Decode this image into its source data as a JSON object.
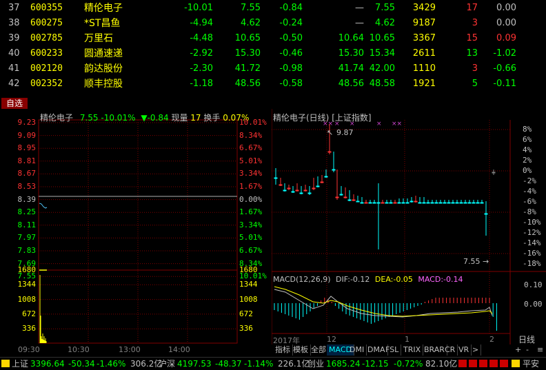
{
  "stocks": [
    {
      "idx": "37",
      "code": "600355",
      "name": "精伦电子",
      "chg": "-10.01",
      "price": "7.55",
      "delta": "-0.84",
      "open": "—",
      "last": "7.55",
      "vol": "3429",
      "hand": "17",
      "rate": "0.00",
      "hand_color": "r",
      "rate_color": "w",
      "open_color": "w"
    },
    {
      "idx": "38",
      "code": "600275",
      "name": "*ST昌鱼",
      "chg": "-4.94",
      "price": "4.62",
      "delta": "-0.24",
      "open": "—",
      "last": "4.62",
      "vol": "9187",
      "hand": "3",
      "rate": "0.00",
      "hand_color": "r",
      "rate_color": "w",
      "open_color": "w"
    },
    {
      "idx": "39",
      "code": "002785",
      "name": "万里石",
      "chg": "-4.48",
      "price": "10.65",
      "delta": "-0.50",
      "open": "10.64",
      "last": "10.65",
      "vol": "3367",
      "hand": "15",
      "rate": "0.09",
      "hand_color": "r",
      "rate_color": "r",
      "open_color": "g"
    },
    {
      "idx": "40",
      "code": "600233",
      "name": "圆通速递",
      "chg": "-2.92",
      "price": "15.30",
      "delta": "-0.46",
      "open": "15.30",
      "last": "15.34",
      "vol": "2611",
      "hand": "13",
      "rate": "-1.02",
      "hand_color": "g",
      "rate_color": "g",
      "open_color": "g"
    },
    {
      "idx": "41",
      "code": "002120",
      "name": "韵达股份",
      "chg": "-2.30",
      "price": "41.72",
      "delta": "-0.98",
      "open": "41.74",
      "last": "42.00",
      "vol": "1110",
      "hand": "3",
      "rate": "-0.66",
      "hand_color": "r",
      "rate_color": "g",
      "open_color": "g"
    },
    {
      "idx": "42",
      "code": "002352",
      "name": "顺丰控股",
      "chg": "-1.18",
      "price": "48.56",
      "delta": "-0.58",
      "open": "48.56",
      "last": "48.58",
      "vol": "1921",
      "hand": "5",
      "rate": "-0.11",
      "hand_color": "g",
      "rate_color": "g",
      "open_color": "g"
    }
  ],
  "tag_self": "自选",
  "intraday": {
    "name": "精伦电子",
    "price": "7.55",
    "pct": "-10.01%",
    "arrow": "▼",
    "delta": "-0.84",
    "vol_label": "现量",
    "vol": "17",
    "turn_label": "换手",
    "turn": "0.07%",
    "price_ticks": [
      {
        "v": "9.23",
        "p": "10.01%",
        "c": "r"
      },
      {
        "v": "9.09",
        "p": "8.34%",
        "c": "r"
      },
      {
        "v": "8.95",
        "p": "6.67%",
        "c": "r"
      },
      {
        "v": "8.81",
        "p": "5.01%",
        "c": "r"
      },
      {
        "v": "8.67",
        "p": "3.34%",
        "c": "r"
      },
      {
        "v": "8.53",
        "p": "1.67%",
        "c": "r"
      },
      {
        "v": "8.39",
        "p": "0.00%",
        "c": "w"
      },
      {
        "v": "8.25",
        "p": "1.67%",
        "c": "g"
      },
      {
        "v": "8.11",
        "p": "3.34%",
        "c": "g"
      },
      {
        "v": "7.97",
        "p": "5.01%",
        "c": "g"
      },
      {
        "v": "7.83",
        "p": "6.67%",
        "c": "g"
      },
      {
        "v": "7.69",
        "p": "8.34%",
        "c": "g"
      },
      {
        "v": "7.55",
        "p": "10.01%",
        "c": "g"
      }
    ],
    "vol_ticks": [
      "1680",
      "1344",
      "1008",
      "672",
      "336"
    ],
    "times": [
      "09:30",
      "10:30",
      "13:00",
      "14:00"
    ]
  },
  "kline": {
    "title": "精伦电子(日线)",
    "index_tag": "[上证指数]",
    "high_label": "9.87",
    "low_label": "7.55",
    "pct_ticks": [
      "8%",
      "6%",
      "4%",
      "2%",
      "0%",
      "-2%",
      "-4%",
      "-6%",
      "-8%",
      "-10%",
      "-12%",
      "-14%",
      "-16%",
      "-18%"
    ],
    "macd_label": "MACD(12,26,9)",
    "dif_label": "DIF:",
    "dif": "-0.12",
    "dea_label": "DEA:",
    "dea": "-0.05",
    "macd_val_label": "MACD:",
    "macd_val": "-0.14",
    "macd_ticks": [
      "0.10",
      "0.00"
    ],
    "year": "2017年",
    "m12": "12",
    "m1": "1",
    "m2": "2",
    "period": "日线"
  },
  "tabs": [
    "指标",
    "模板",
    "全部",
    "MACD",
    "DMI",
    "DMA",
    "FSL",
    "TRIX",
    "BRAR",
    "CR",
    "VR",
    ">"
  ],
  "tab_icons": [
    "+",
    "-",
    "≡"
  ],
  "ticker": {
    "sh_name": "上证",
    "sh_val": "3396.64",
    "sh_chg": "-50.34",
    "sh_pct": "-1.46%",
    "sh_amt": "306.2亿",
    "hs_name": "沪深",
    "hs_val": "4197.53",
    "hs_chg": "-48.37",
    "hs_pct": "-1.14%",
    "hs_amt": "226.1亿",
    "cy_name": "创业",
    "cy_val": "1685.24",
    "cy_chg": "-12.15",
    "cy_pct": "-0.72%",
    "cy_amt": "82.10亿",
    "tail": "平安"
  },
  "colors": {
    "up": "#ff3333",
    "down": "#00ff00",
    "yellow": "#ffff00",
    "grid": "#800000",
    "cyan": "#00ffff"
  }
}
